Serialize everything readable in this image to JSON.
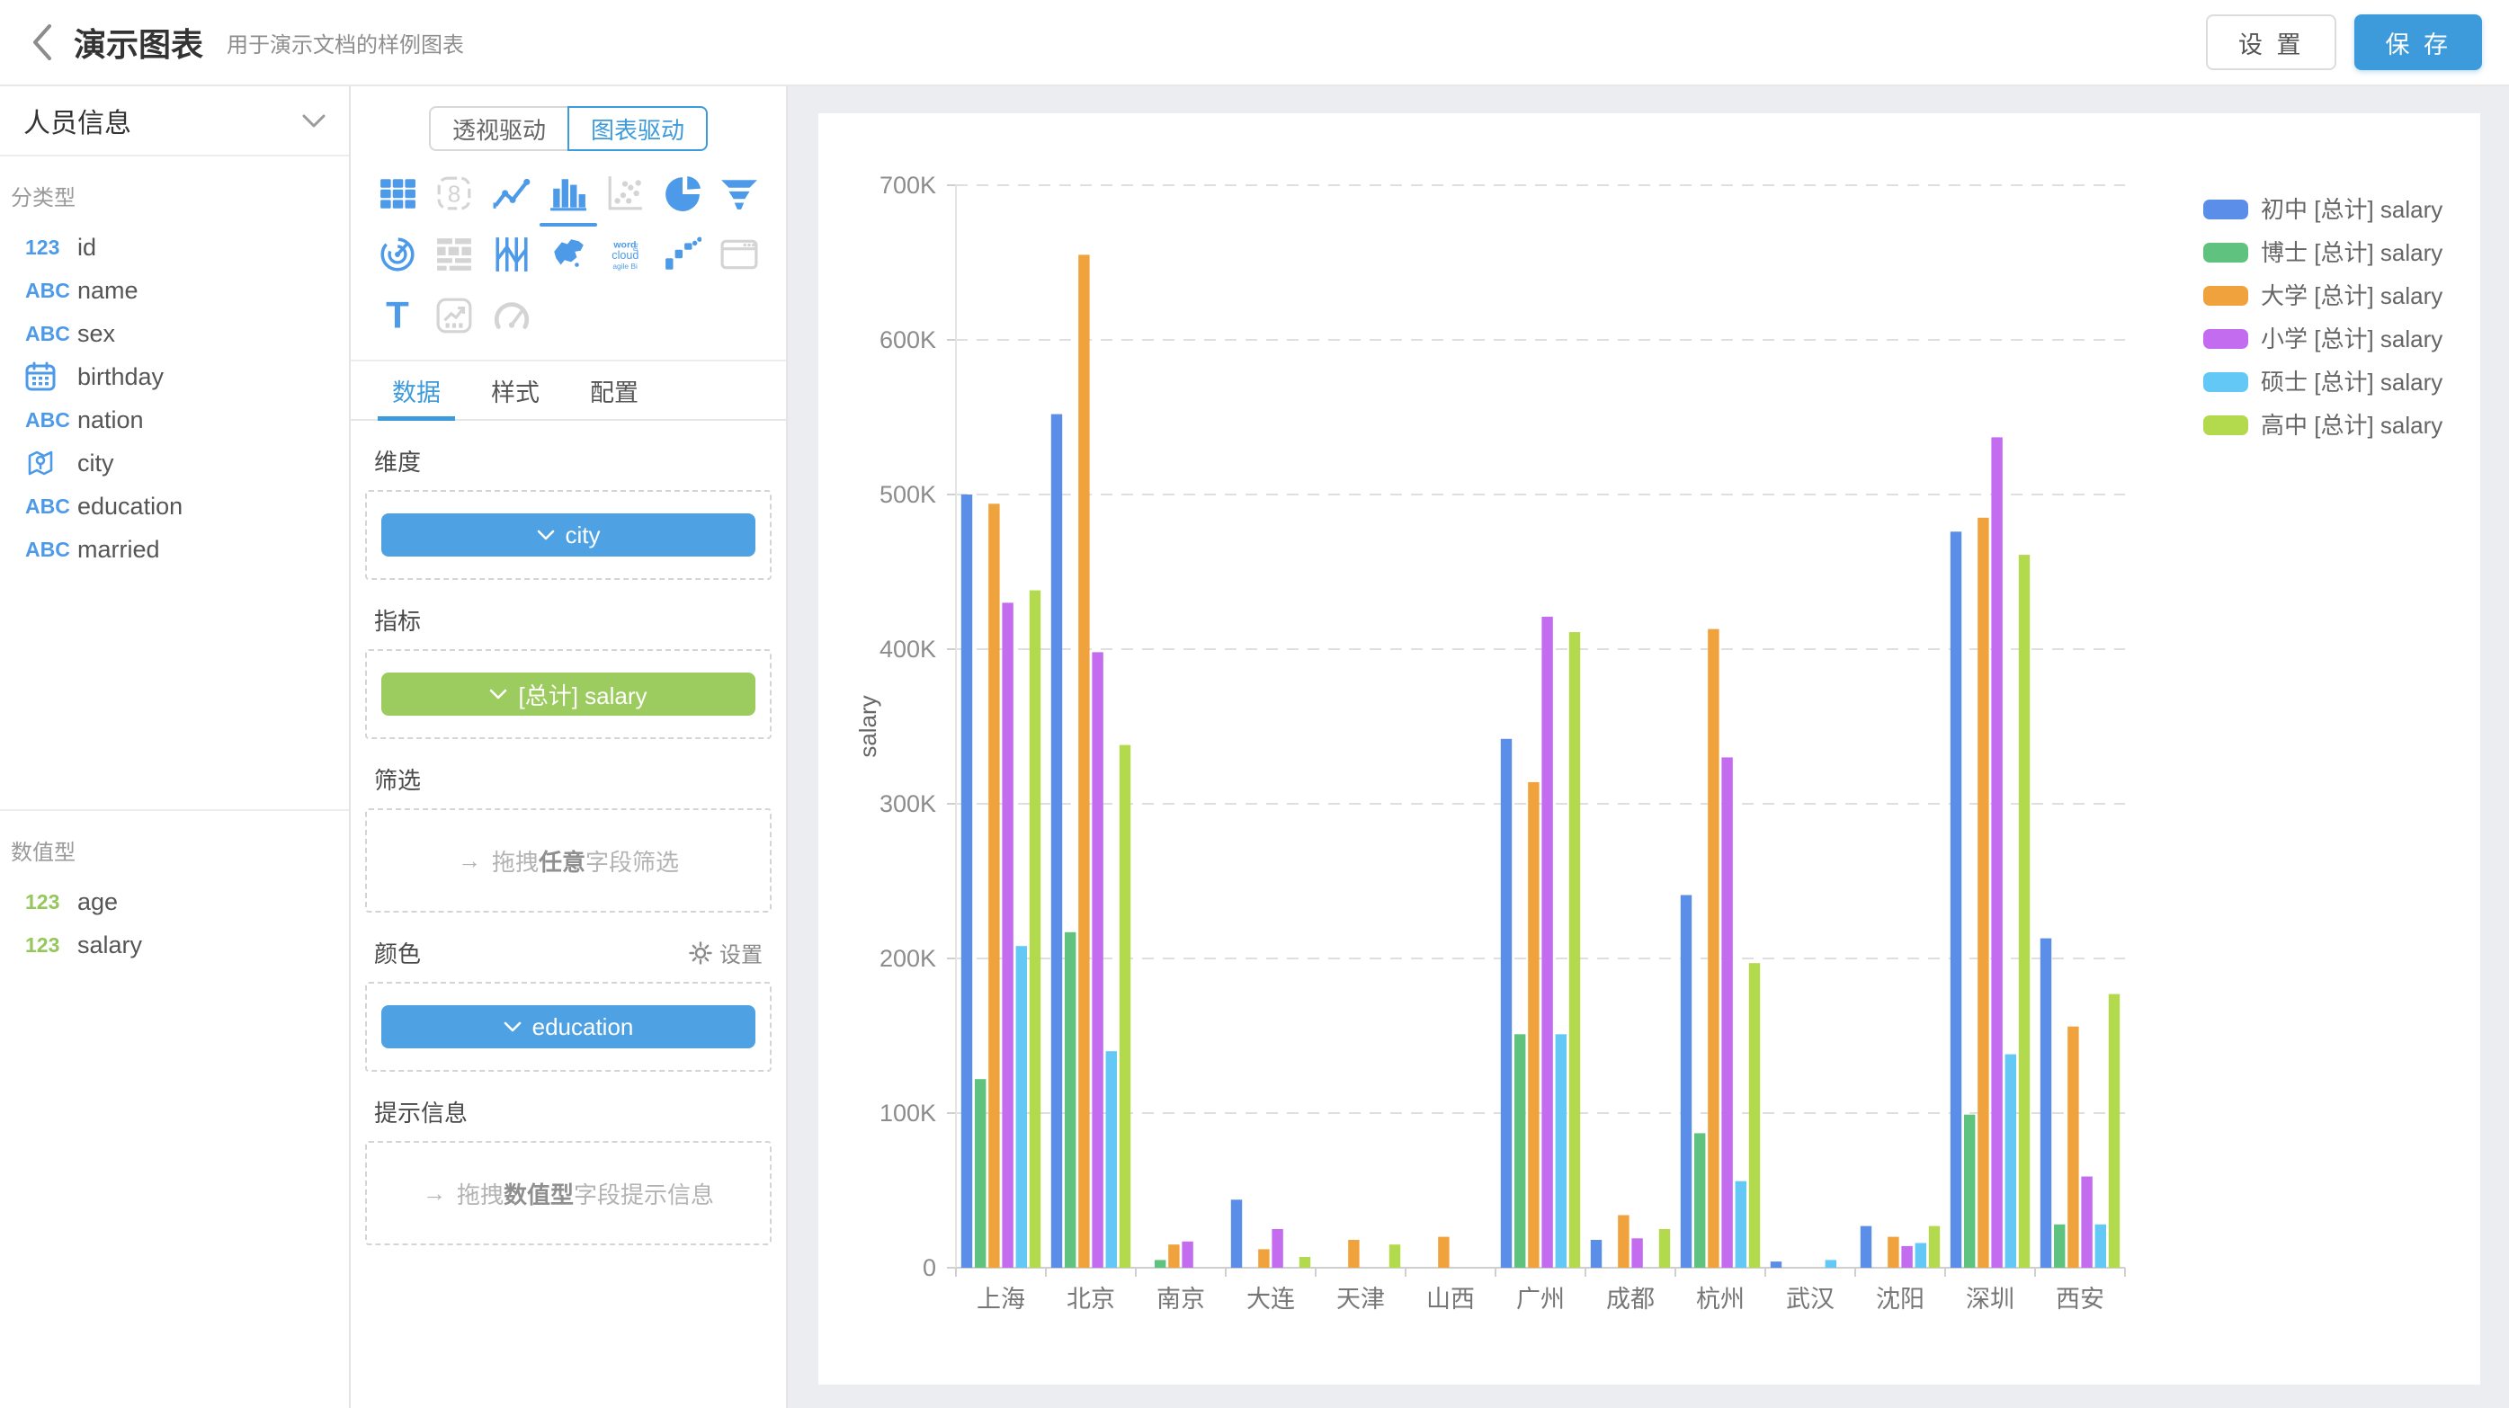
{
  "header": {
    "title": "演示图表",
    "subtitle": "用于演示文档的样例图表",
    "settings_label": "设 置",
    "save_label": "保 存",
    "accent_color": "#3D9BDC"
  },
  "sidebar": {
    "dataset_name": "人员信息",
    "sections": [
      {
        "label": "分类型",
        "fields": [
          {
            "kind": "123",
            "color": "#4D9BE8",
            "name": "id"
          },
          {
            "kind": "ABC",
            "color": "#4D9BE8",
            "name": "name"
          },
          {
            "kind": "ABC",
            "color": "#4D9BE8",
            "name": "sex"
          },
          {
            "kind": "calendar",
            "color": "#4D9BE8",
            "name": "birthday"
          },
          {
            "kind": "ABC",
            "color": "#4D9BE8",
            "name": "nation"
          },
          {
            "kind": "pin",
            "color": "#4D9BE8",
            "name": "city"
          },
          {
            "kind": "ABC",
            "color": "#4D9BE8",
            "name": "education"
          },
          {
            "kind": "ABC",
            "color": "#4D9BE8",
            "name": "married"
          }
        ]
      },
      {
        "label": "数值型",
        "fields": [
          {
            "kind": "123",
            "color": "#95C75A",
            "name": "age"
          },
          {
            "kind": "123",
            "color": "#95C75A",
            "name": "salary"
          }
        ]
      }
    ]
  },
  "panel": {
    "mode_tabs": [
      {
        "label": "透视驱动",
        "active": false
      },
      {
        "label": "图表驱动",
        "active": true
      }
    ],
    "chart_icons": [
      {
        "name": "table-icon",
        "kind": "table",
        "enabled": true,
        "selected": false
      },
      {
        "name": "number-card-icon",
        "kind": "numcard",
        "enabled": false,
        "selected": false
      },
      {
        "name": "line-chart-icon",
        "kind": "line",
        "enabled": true,
        "selected": false
      },
      {
        "name": "bar-chart-icon",
        "kind": "bar",
        "enabled": true,
        "selected": true
      },
      {
        "name": "scatter-icon",
        "kind": "scatter",
        "enabled": false,
        "selected": false
      },
      {
        "name": "pie-chart-icon",
        "kind": "pie",
        "enabled": true,
        "selected": false
      },
      {
        "name": "funnel-icon",
        "kind": "funnel",
        "enabled": true,
        "selected": false
      },
      {
        "name": "radar-icon",
        "kind": "radar",
        "enabled": true,
        "selected": false
      },
      {
        "name": "crosstab-icon",
        "kind": "crosstab",
        "enabled": false,
        "selected": false
      },
      {
        "name": "parallel-icon",
        "kind": "parallel",
        "enabled": true,
        "selected": false
      },
      {
        "name": "china-map-icon",
        "kind": "chinamap",
        "enabled": true,
        "selected": false
      },
      {
        "name": "word-cloud-icon",
        "kind": "wordcloud",
        "enabled": true,
        "selected": false
      },
      {
        "name": "waterfall-icon",
        "kind": "waterfall",
        "enabled": true,
        "selected": false
      },
      {
        "name": "web-frame-icon",
        "kind": "webframe",
        "enabled": false,
        "selected": false
      },
      {
        "name": "text-icon",
        "kind": "textT",
        "enabled": true,
        "selected": false
      },
      {
        "name": "trend-card-icon",
        "kind": "trendbox",
        "enabled": false,
        "selected": false
      },
      {
        "name": "gauge-icon",
        "kind": "gauge",
        "enabled": false,
        "selected": false
      }
    ],
    "enabled_icon_color": "#4D9BE8",
    "disabled_icon_color": "#D4D4D4",
    "tabs": [
      {
        "label": "数据",
        "active": true
      },
      {
        "label": "样式",
        "active": false
      },
      {
        "label": "配置",
        "active": false
      }
    ],
    "chip_colors": {
      "blue": "#4EA2E3",
      "green": "#9CCB5F"
    },
    "drop_arrow": "→",
    "sections": {
      "dimension": {
        "label": "维度",
        "chips": [
          {
            "text": "city",
            "color": "blue"
          }
        ]
      },
      "metric": {
        "label": "指标",
        "chips": [
          {
            "text": "[总计] salary",
            "color": "green"
          }
        ]
      },
      "filter": {
        "label": "筛选",
        "ph_prefix": "拖拽",
        "ph_bold": "任意",
        "ph_suffix": "字段筛选"
      },
      "color": {
        "label": "颜色",
        "action": "设置",
        "chips": [
          {
            "text": "education",
            "color": "blue"
          }
        ]
      },
      "tooltip": {
        "label": "提示信息",
        "ph_prefix": "拖拽",
        "ph_bold": "数值型",
        "ph_suffix": "字段提示信息"
      }
    }
  },
  "chart_data": {
    "type": "bar",
    "title": "",
    "ylabel": "salary",
    "xlabel": "",
    "ylim": [
      0,
      700000
    ],
    "ytick_labels": [
      "0",
      "100K",
      "200K",
      "300K",
      "400K",
      "500K",
      "600K",
      "700K"
    ],
    "grid": "dashed-horizontal",
    "legend_position": "top-right",
    "categories": [
      "上海",
      "北京",
      "南京",
      "大连",
      "天津",
      "山西",
      "广州",
      "成都",
      "杭州",
      "武汉",
      "沈阳",
      "深圳",
      "西安"
    ],
    "series": [
      {
        "name": "初中 [总计] salary",
        "color": "#5A8EE9",
        "values": [
          500000,
          552000,
          0,
          44000,
          0,
          0,
          342000,
          18000,
          241000,
          4000,
          27000,
          476000,
          213000
        ]
      },
      {
        "name": "博士 [总计] salary",
        "color": "#5FC27E",
        "values": [
          122000,
          217000,
          5000,
          0,
          0,
          0,
          151000,
          0,
          87000,
          0,
          0,
          99000,
          28000
        ]
      },
      {
        "name": "大学 [总计] salary",
        "color": "#F0A23C",
        "values": [
          494000,
          655000,
          15000,
          12000,
          18000,
          20000,
          314000,
          34000,
          413000,
          0,
          20000,
          485000,
          156000
        ]
      },
      {
        "name": "小学 [总计] salary",
        "color": "#C46CF0",
        "values": [
          430000,
          398000,
          17000,
          25000,
          0,
          0,
          421000,
          19000,
          330000,
          0,
          14000,
          537000,
          59000
        ]
      },
      {
        "name": "硕士 [总计] salary",
        "color": "#63C8F5",
        "values": [
          208000,
          140000,
          0,
          0,
          0,
          0,
          151000,
          0,
          56000,
          5000,
          16000,
          138000,
          28000
        ]
      },
      {
        "name": "高中 [总计] salary",
        "color": "#B3D94D",
        "values": [
          438000,
          338000,
          0,
          7000,
          15000,
          0,
          411000,
          25000,
          197000,
          0,
          27000,
          461000,
          177000
        ]
      }
    ]
  }
}
